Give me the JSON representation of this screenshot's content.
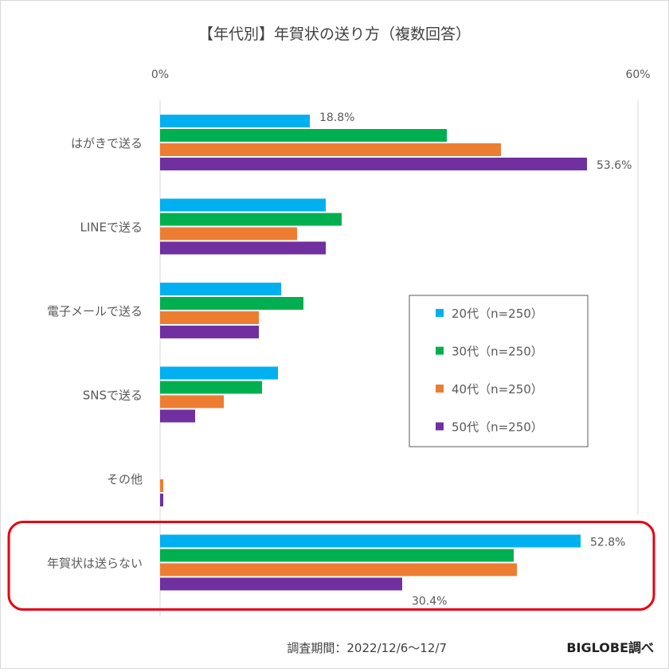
{
  "chart_data": {
    "type": "bar",
    "orientation": "horizontal",
    "title": "【年代別】年賀状の送り方（複数回答）",
    "xlim": [
      0,
      60
    ],
    "x_ticks": [
      "0%",
      "60%"
    ],
    "categories": [
      "はがきで送る",
      "LINEで送る",
      "電子メールで送る",
      "SNSで送る",
      "その他",
      "年賀状は送らない"
    ],
    "series": [
      {
        "name": "20代（n=250）",
        "color": "#00b0f0",
        "values": [
          18.8,
          20.8,
          15.2,
          14.8,
          0.0,
          52.8
        ]
      },
      {
        "name": "30代（n=250）",
        "color": "#00b050",
        "values": [
          36.0,
          22.8,
          18.0,
          12.8,
          0.0,
          44.4
        ]
      },
      {
        "name": "40代（n=250）",
        "color": "#ed7d31",
        "values": [
          42.8,
          17.2,
          12.4,
          8.0,
          0.4,
          44.8
        ]
      },
      {
        "name": "50代（n=250）",
        "color": "#7030a0",
        "values": [
          53.6,
          20.8,
          12.4,
          4.4,
          0.4,
          30.4
        ]
      }
    ],
    "data_labels": [
      {
        "series": 0,
        "category": 0,
        "text": "18.8%"
      },
      {
        "series": 3,
        "category": 0,
        "text": "53.6%"
      },
      {
        "series": 0,
        "category": 5,
        "text": "52.8%"
      },
      {
        "series": 3,
        "category": 5,
        "text": "30.4%"
      }
    ],
    "legend_placement": "center-right",
    "highlight_category": "年賀状は送らない",
    "highlight_color": "#e60012",
    "grid": false
  },
  "footer": {
    "period": "調査期間：2022/12/6～12/7",
    "source": "BIGLOBE調べ"
  }
}
